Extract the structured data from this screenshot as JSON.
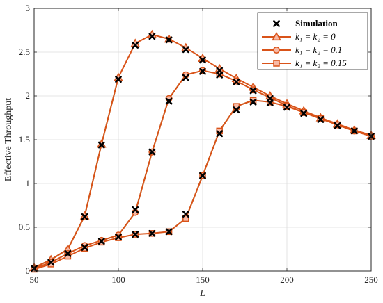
{
  "chart_data": {
    "type": "line",
    "xlabel": "L",
    "ylabel": "Effective Throughput",
    "xlim": [
      50,
      250
    ],
    "ylim": [
      0,
      3
    ],
    "xticks": [
      "50",
      "100",
      "150",
      "200",
      "250"
    ],
    "yticks": [
      "0",
      "0.5",
      "1",
      "1.5",
      "2",
      "2.5",
      "3"
    ],
    "grid": true,
    "legend_position": "top-right",
    "colors": {
      "line": "#d95319",
      "marker_fill": "#f7b9a6",
      "green_segment": "#8b7d2e",
      "simulation": "#000000"
    },
    "x": [
      50,
      60,
      70,
      80,
      90,
      100,
      110,
      120,
      130,
      140,
      150,
      160,
      170,
      180,
      190,
      200,
      210,
      220,
      230,
      240,
      250
    ],
    "series": [
      {
        "name": "k1 = k2 = 0",
        "marker": "triangle",
        "values": [
          0.04,
          0.13,
          0.25,
          0.63,
          1.45,
          2.21,
          2.6,
          2.7,
          2.65,
          2.55,
          2.43,
          2.31,
          2.2,
          2.1,
          2.0,
          1.91,
          1.83,
          1.75,
          1.68,
          1.61,
          1.55
        ]
      },
      {
        "name": "k1 = k2 = 0.1",
        "marker": "circle",
        "values": [
          0.03,
          0.1,
          0.2,
          0.29,
          0.35,
          0.41,
          0.67,
          1.36,
          1.97,
          2.24,
          2.29,
          2.25,
          2.17,
          2.07,
          1.98,
          1.89,
          1.81,
          1.74,
          1.67,
          1.6,
          1.54
        ]
      },
      {
        "name": "k1 = k2 = 0.15",
        "marker": "square",
        "values": [
          0.02,
          0.08,
          0.17,
          0.26,
          0.33,
          0.38,
          0.42,
          0.43,
          0.45,
          0.6,
          1.09,
          1.6,
          1.88,
          1.95,
          1.93,
          1.88,
          1.81,
          1.74,
          1.67,
          1.6,
          1.54
        ]
      },
      {
        "name": "Simulation",
        "marker": "x",
        "points": [
          [
            50,
            0.03
          ],
          [
            60,
            0.1
          ],
          [
            70,
            0.2
          ],
          [
            80,
            0.27
          ],
          [
            80,
            0.62
          ],
          [
            90,
            0.34
          ],
          [
            90,
            1.44
          ],
          [
            100,
            0.39
          ],
          [
            100,
            2.19
          ],
          [
            110,
            0.42
          ],
          [
            110,
            0.7
          ],
          [
            110,
            2.58
          ],
          [
            120,
            0.43
          ],
          [
            120,
            1.36
          ],
          [
            120,
            2.68
          ],
          [
            130,
            0.45
          ],
          [
            130,
            1.94
          ],
          [
            130,
            2.64
          ],
          [
            140,
            0.65
          ],
          [
            140,
            2.21
          ],
          [
            140,
            2.53
          ],
          [
            150,
            1.09
          ],
          [
            150,
            2.28
          ],
          [
            150,
            2.41
          ],
          [
            160,
            1.57
          ],
          [
            160,
            2.24
          ],
          [
            160,
            2.29
          ],
          [
            170,
            1.84
          ],
          [
            170,
            2.16
          ],
          [
            180,
            1.93
          ],
          [
            180,
            2.06
          ],
          [
            190,
            1.92
          ],
          [
            190,
            1.97
          ],
          [
            200,
            1.87
          ],
          [
            210,
            1.8
          ],
          [
            220,
            1.73
          ],
          [
            230,
            1.66
          ],
          [
            240,
            1.6
          ],
          [
            250,
            1.54
          ]
        ]
      }
    ]
  },
  "legend": {
    "entries": [
      {
        "label": "Simulation",
        "label_italic_part": "",
        "marker": "x"
      },
      {
        "label_italic_part": "k₁ = k₂ = 0",
        "label": "",
        "marker": "triangle"
      },
      {
        "label_italic_part": "k₁ = k₂ = 0.1",
        "label": "",
        "marker": "circle"
      },
      {
        "label_italic_part": "k₁ = k₂ = 0.15",
        "label": "",
        "marker": "square"
      }
    ]
  }
}
